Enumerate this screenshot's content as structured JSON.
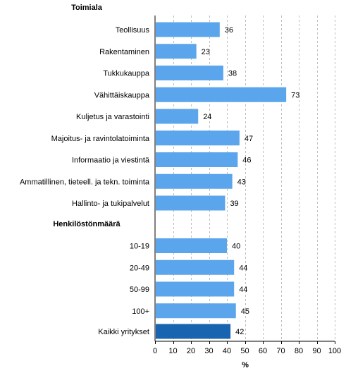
{
  "chart_data": {
    "type": "bar",
    "orientation": "horizontal",
    "groups": [
      {
        "heading": "Toimiala",
        "categories": [
          "Teollisuus",
          "Rakentaminen",
          "Tukkukauppa",
          "Vähittäiskauppa",
          "Kuljetus ja varastointi",
          "Majoitus- ja ravintolatoiminta",
          "Informaatio ja viestintä",
          "Ammatillinen, tieteell. ja tekn. toiminta",
          "Hallinto- ja tukipalvelut"
        ],
        "values": [
          36,
          23,
          38,
          73,
          24,
          47,
          46,
          43,
          39
        ]
      },
      {
        "heading": "Henkilöstönmäärä",
        "categories": [
          "10-19",
          "20-49",
          "50-99",
          "100+"
        ],
        "values": [
          40,
          44,
          44,
          45
        ]
      },
      {
        "heading": "",
        "categories": [
          "Kaikki yritykset"
        ],
        "values": [
          42
        ],
        "highlight": true
      }
    ],
    "xlabel": "%",
    "xlim": [
      0,
      100
    ],
    "xticks": [
      0,
      10,
      20,
      30,
      40,
      50,
      60,
      70,
      80,
      90,
      100
    ],
    "grid": "vertical dashed",
    "colors": {
      "bar": "#5aa5ec",
      "highlight_bar": "#1864b0",
      "grid": "#bdbdbd"
    }
  }
}
